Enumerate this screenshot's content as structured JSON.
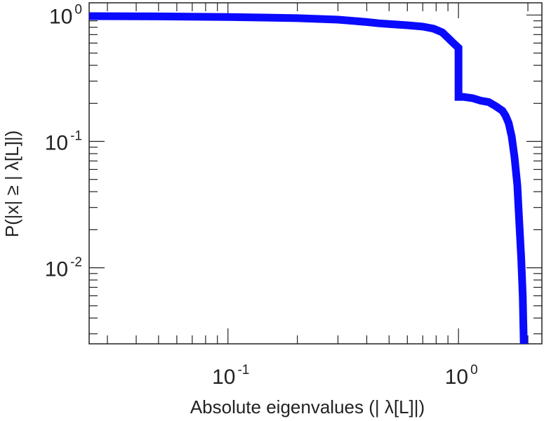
{
  "chart_data": {
    "type": "line",
    "title": "",
    "xlabel": "Absolute eigenvalues (|     λ[L]|)",
    "ylabel": "P(|x|  ≥ | λ[L]|)",
    "x_scale": "log",
    "y_scale": "log",
    "xlim": [
      0.025,
      2.3
    ],
    "ylim": [
      0.0025,
      1.25
    ],
    "grid": false,
    "x_ticks": [
      {
        "value": 0.1,
        "base": "10",
        "exp": "-1"
      },
      {
        "value": 1,
        "base": "10",
        "exp": "0"
      }
    ],
    "y_ticks": [
      {
        "value": 1,
        "base": "10",
        "exp": "0"
      },
      {
        "value": 0.1,
        "base": "10",
        "exp": "-1"
      },
      {
        "value": 0.01,
        "base": "10",
        "exp": "-2"
      }
    ],
    "series": [
      {
        "color": "#0a0aff",
        "x": [
          0.025,
          0.05,
          0.1,
          0.2,
          0.3,
          0.4,
          0.45,
          0.5,
          0.6,
          0.7,
          0.78,
          0.85,
          0.9,
          0.95,
          1.0,
          1.0,
          1.05,
          1.15,
          1.25,
          1.35,
          1.45,
          1.55,
          1.6,
          1.65,
          1.7,
          1.75,
          1.8,
          1.83,
          1.87,
          1.9,
          1.92
        ],
        "y": [
          0.98,
          0.975,
          0.965,
          0.945,
          0.92,
          0.88,
          0.86,
          0.85,
          0.83,
          0.81,
          0.78,
          0.73,
          0.66,
          0.6,
          0.55,
          0.225,
          0.225,
          0.22,
          0.21,
          0.205,
          0.19,
          0.175,
          0.16,
          0.14,
          0.11,
          0.075,
          0.045,
          0.025,
          0.012,
          0.006,
          0.0025
        ]
      }
    ]
  }
}
